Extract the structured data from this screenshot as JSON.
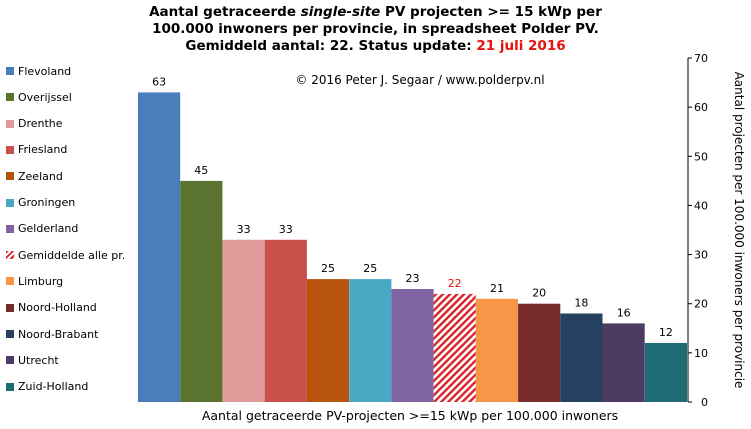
{
  "title": {
    "line1_a": "Aantal getraceerde ",
    "line1_b": "single-site",
    "line1_c": " PV projecten >= 15 kWp per",
    "line2": "100.000 inwoners per provincie, in spreadsheet Polder PV.",
    "line3_a": "Gemiddeld aantal: 22. Status update: ",
    "line3_b": "21 juli 2016"
  },
  "copyright": "© 2016 Peter J. Segaar / www.polderpv.nl",
  "xlabel": "Aantal getraceerde PV-projecten >=15 kWp per 100.000 inwoners",
  "colors": {
    "highlight_label": "#e8120c"
  },
  "chart_data": {
    "type": "bar",
    "categories": [
      "Flevoland",
      "Overijssel",
      "Drenthe",
      "Friesland",
      "Zeeland",
      "Groningen",
      "Gelderland",
      "Gemiddelde alle pr.",
      "Limburg",
      "Noord-Holland",
      "Noord-Brabant",
      "Utrecht",
      "Zuid-Holland"
    ],
    "values": [
      63,
      45,
      33,
      33,
      25,
      25,
      23,
      22,
      21,
      20,
      18,
      16,
      12
    ],
    "colors": [
      "#4a7ebb",
      "#5a7430",
      "#e09a99",
      "#c9504b",
      "#b9540f",
      "#4aa8c4",
      "#8064a2",
      "#d8232a",
      "#f79646",
      "#772c2a",
      "#254061",
      "#4d3b62",
      "#1f6b75"
    ],
    "hatched": [
      false,
      false,
      false,
      false,
      false,
      false,
      false,
      true,
      false,
      false,
      false,
      false,
      false
    ],
    "ylabel": "Aantal projecten per 100.000 inwoners per provincie",
    "ylim": [
      0,
      70
    ],
    "yticks": [
      0,
      10,
      20,
      30,
      40,
      50,
      60,
      70
    ],
    "y_axis_side": "right",
    "legend_position": "left",
    "grid": false
  }
}
